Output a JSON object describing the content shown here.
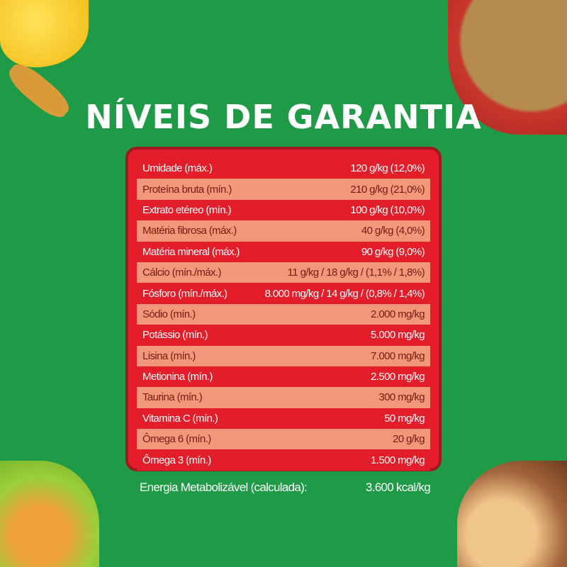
{
  "title": "NÍVEIS DE GARANTIA",
  "colors": {
    "background": "#1f9a46",
    "row_dark": "#e31e2a",
    "row_light": "#f3977a",
    "border": "#9c1a20"
  },
  "rows": [
    {
      "label": "Umidade (máx.)",
      "value": "120 g/kg (12,0%)"
    },
    {
      "label": "Proteína bruta (mín.)",
      "value": "210 g/kg (21,0%)"
    },
    {
      "label": "Extrato etéreo (mín.)",
      "value": "100 g/kg (10,0%)"
    },
    {
      "label": "Matéria fibrosa (máx.)",
      "value": "40 g/kg (4,0%)"
    },
    {
      "label": "Matéria mineral (máx.)",
      "value": "90 g/kg (9,0%)"
    },
    {
      "label": "Cálcio (mín./máx.)",
      "value": "11 g/kg / 18 g/kg / (1,1% / 1,8%)"
    },
    {
      "label": "Fósforo (mín./máx.)",
      "value": "8.000 mg/kg / 14 g/kg / (0,8% / 1,4%)"
    },
    {
      "label": "Sódio (mín.)",
      "value": "2.000 mg/kg"
    },
    {
      "label": "Potássio (mín.)",
      "value": "5.000 mg/kg"
    },
    {
      "label": "Lisina (mín.)",
      "value": "7.000 mg/kg"
    },
    {
      "label": "Metionina (mín.)",
      "value": "2.500 mg/kg"
    },
    {
      "label": "Taurina (mín.)",
      "value": "300 mg/kg"
    },
    {
      "label": "Vitamina C (mín.)",
      "value": "50 mg/kg"
    },
    {
      "label": "Ômega 6 (mín.)",
      "value": "20 g/kg"
    },
    {
      "label": "Ômega 3 (mín.)",
      "value": "1.500 mg/kg"
    }
  ],
  "energy": {
    "label": "Energia Metabolizável (calculada):",
    "value": "3.600 kcal/kg"
  }
}
